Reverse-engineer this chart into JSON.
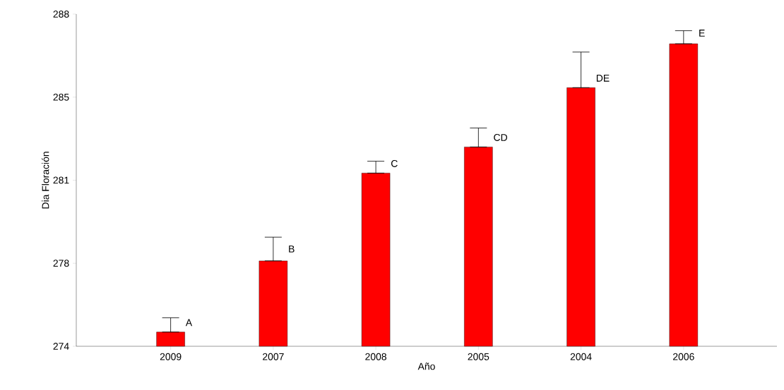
{
  "chart_data": {
    "type": "bar",
    "xlabel": "Año",
    "ylabel": "Dia Floración",
    "categories": [
      "2009",
      "2007",
      "2008",
      "2005",
      "2004",
      "2006"
    ],
    "values": [
      274.6,
      277.6,
      281.3,
      282.4,
      284.9,
      286.75
    ],
    "errors": [
      [
        274.6,
        275.2
      ],
      [
        277.6,
        278.6
      ],
      [
        281.3,
        281.8
      ],
      [
        282.4,
        283.2
      ],
      [
        284.9,
        286.4
      ],
      [
        286.75,
        287.3
      ]
    ],
    "color": "#ff0000",
    "ylim": [
      274,
      288
    ],
    "yticks": [
      274,
      {
        "value": 277.5,
        "label": "278"
      },
      281,
      {
        "value": 284.5,
        "label": "285"
      },
      288
    ],
    "annotations": [
      {
        "text": "A",
        "x": "2009",
        "y": 275.0
      },
      {
        "text": "B",
        "x": "2007",
        "y": 278.1
      },
      {
        "text": "C",
        "x": "2008",
        "y": 281.7
      },
      {
        "text": "CD",
        "x": "2005",
        "y": 282.8
      },
      {
        "text": "DE",
        "x": "2004",
        "y": 285.3
      },
      {
        "text": "E",
        "x": "2006",
        "y": 287.2
      }
    ],
    "grid": false
  }
}
